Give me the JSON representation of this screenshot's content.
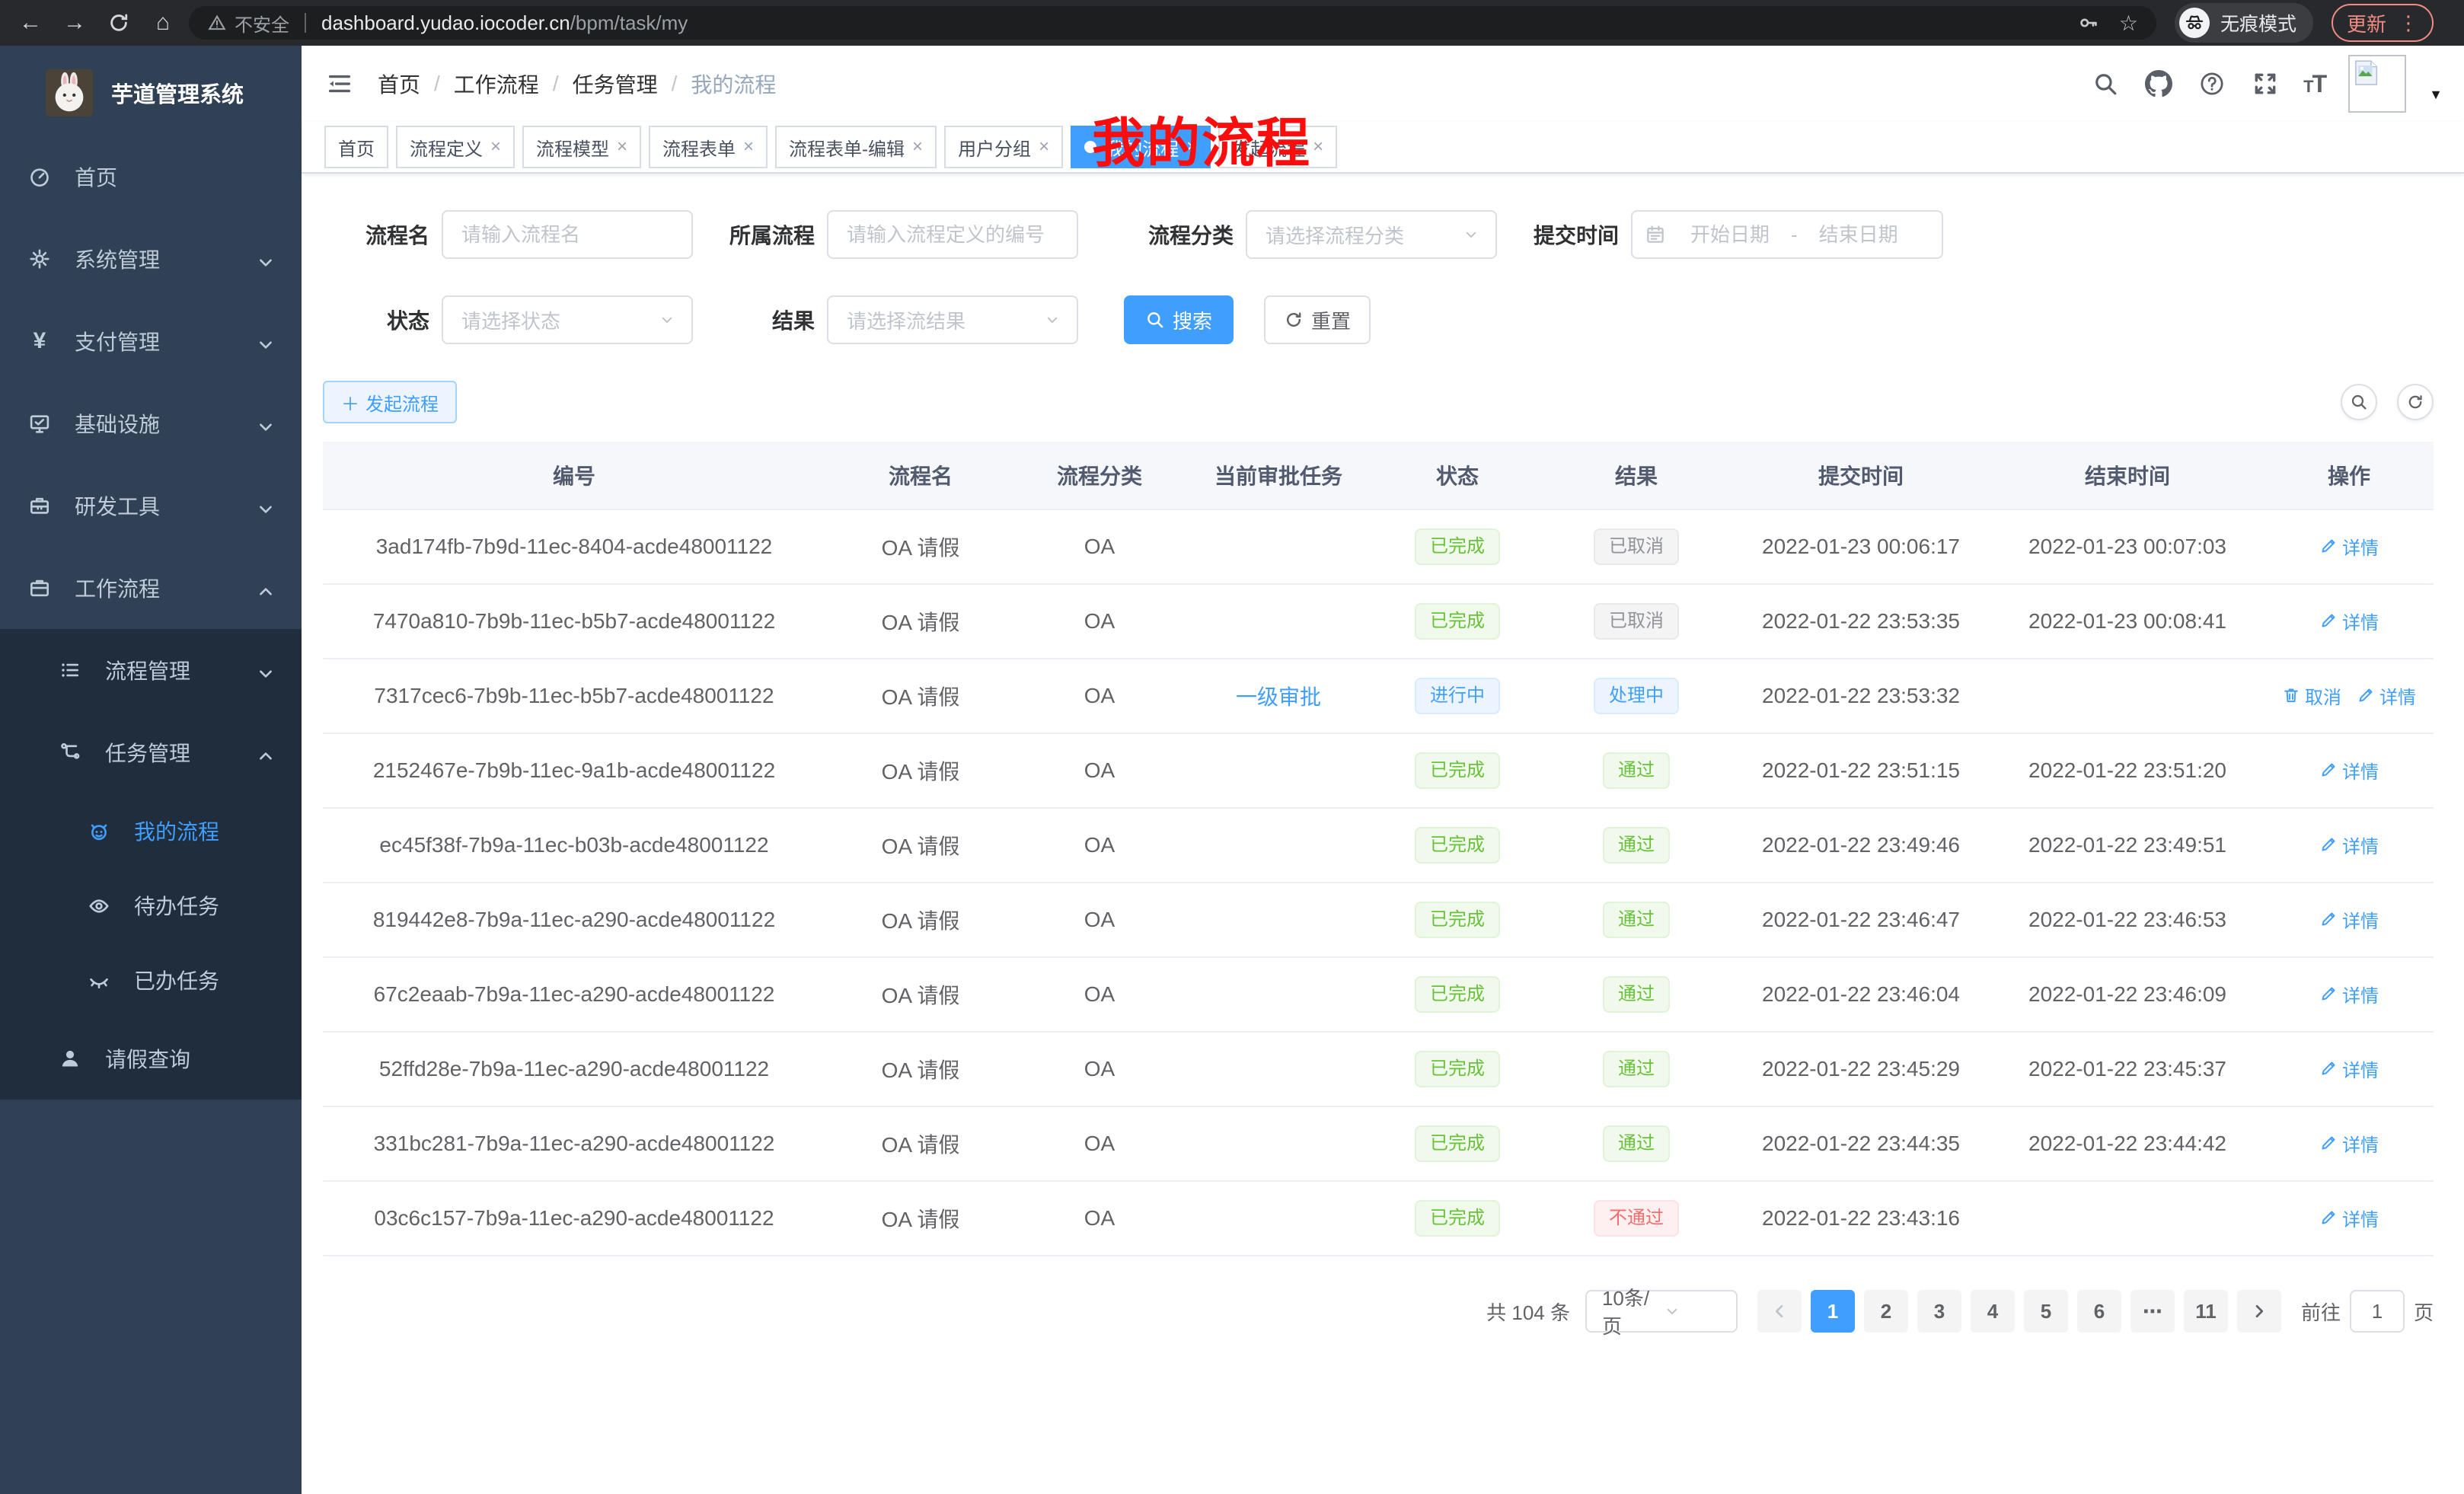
{
  "browser": {
    "not_secure": "不安全",
    "url_host": "dashboard.yudao.iocoder.cn",
    "url_path": "/bpm/task/my",
    "incognito_label": "无痕模式",
    "update_label": "更新"
  },
  "sidebar": {
    "title": "芋道管理系统",
    "menu": [
      {
        "name": "home",
        "label": "首页",
        "icon": "dashboard-icon",
        "level": 1,
        "sub": false
      },
      {
        "name": "system",
        "label": "系统管理",
        "icon": "gear-icon",
        "level": 1,
        "chevron": "down",
        "sub": false
      },
      {
        "name": "payment",
        "label": "支付管理",
        "icon": "yen-icon",
        "level": 1,
        "chevron": "down",
        "sub": false
      },
      {
        "name": "infrastructure",
        "label": "基础设施",
        "icon": "monitor-icon",
        "level": 1,
        "chevron": "down",
        "sub": false
      },
      {
        "name": "dev-tools",
        "label": "研发工具",
        "icon": "toolbox-icon",
        "level": 1,
        "chevron": "down",
        "sub": false
      },
      {
        "name": "workflow",
        "label": "工作流程",
        "icon": "briefcase-icon",
        "level": 1,
        "chevron": "up",
        "sub": false
      },
      {
        "name": "process-mgmt",
        "label": "流程管理",
        "icon": "list-icon",
        "level": 2,
        "chevron": "down",
        "sub": true
      },
      {
        "name": "task-mgmt",
        "label": "任务管理",
        "icon": "tree-icon",
        "level": 2,
        "chevron": "up",
        "sub": true
      },
      {
        "name": "my-process",
        "label": "我的流程",
        "icon": "robot-icon",
        "level": 3,
        "active": true,
        "sub": true
      },
      {
        "name": "todo-tasks",
        "label": "待办任务",
        "icon": "eye-icon",
        "level": 3,
        "sub": true
      },
      {
        "name": "done-tasks",
        "label": "已办任务",
        "icon": "eye-closed-icon",
        "level": 3,
        "sub": true
      },
      {
        "name": "leave-query",
        "label": "请假查询",
        "icon": "user-icon",
        "level": 2,
        "sub": true
      }
    ]
  },
  "header": {
    "breadcrumb": [
      "首页",
      "工作流程",
      "任务管理",
      "我的流程"
    ],
    "annotation": "我的流程"
  },
  "tabs": [
    {
      "name": "tab-home",
      "label": "首页",
      "closable": false,
      "active": false
    },
    {
      "name": "tab-process-definition",
      "label": "流程定义",
      "closable": true,
      "active": false
    },
    {
      "name": "tab-process-model",
      "label": "流程模型",
      "closable": true,
      "active": false
    },
    {
      "name": "tab-process-form",
      "label": "流程表单",
      "closable": true,
      "active": false
    },
    {
      "name": "tab-process-form-edit",
      "label": "流程表单-编辑",
      "closable": true,
      "active": false
    },
    {
      "name": "tab-user-group",
      "label": "用户分组",
      "closable": true,
      "active": false
    },
    {
      "name": "tab-my-process",
      "label": "我的流程",
      "closable": true,
      "active": true
    },
    {
      "name": "tab-start-process",
      "label": "发起流程",
      "closable": true,
      "active": false
    }
  ],
  "filters": {
    "name_label": "流程名",
    "name_placeholder": "请输入流程名",
    "definition_label": "所属流程",
    "definition_placeholder": "请输入流程定义的编号",
    "category_label": "流程分类",
    "category_placeholder": "请选择流程分类",
    "time_label": "提交时间",
    "start_placeholder": "开始日期",
    "range_separator": "-",
    "end_placeholder": "结束日期",
    "status_label": "状态",
    "status_placeholder": "请选择状态",
    "result_label": "结果",
    "result_placeholder": "请选择流结果",
    "search_label": "搜索",
    "reset_label": "重置"
  },
  "toolbar": {
    "create_label": "发起流程"
  },
  "table": {
    "columns": [
      "编号",
      "流程名",
      "流程分类",
      "当前审批任务",
      "状态",
      "结果",
      "提交时间",
      "结束时间",
      "操作"
    ],
    "rows": [
      {
        "id": "3ad174fb-7b9d-11ec-8404-acde48001122",
        "name": "OA 请假",
        "category": "OA",
        "task": "",
        "status": {
          "text": "已完成",
          "type": "success"
        },
        "result": {
          "text": "已取消",
          "type": "info"
        },
        "submit": "2022-01-23 00:06:17",
        "end": "2022-01-23 00:07:03",
        "ops": [
          {
            "name": "detail-button",
            "label": "详情",
            "icon": "edit-icon"
          }
        ]
      },
      {
        "id": "7470a810-7b9b-11ec-b5b7-acde48001122",
        "name": "OA 请假",
        "category": "OA",
        "task": "",
        "status": {
          "text": "已完成",
          "type": "success"
        },
        "result": {
          "text": "已取消",
          "type": "info"
        },
        "submit": "2022-01-22 23:53:35",
        "end": "2022-01-23 00:08:41",
        "ops": [
          {
            "name": "detail-button",
            "label": "详情",
            "icon": "edit-icon"
          }
        ]
      },
      {
        "id": "7317cec6-7b9b-11ec-b5b7-acde48001122",
        "name": "OA 请假",
        "category": "OA",
        "task": "一级审批",
        "status": {
          "text": "进行中",
          "type": "primary"
        },
        "result": {
          "text": "处理中",
          "type": "primary"
        },
        "submit": "2022-01-22 23:53:32",
        "end": "",
        "ops": [
          {
            "name": "cancel-button",
            "label": "取消",
            "icon": "trash-icon"
          },
          {
            "name": "detail-button",
            "label": "详情",
            "icon": "edit-icon"
          }
        ]
      },
      {
        "id": "2152467e-7b9b-11ec-9a1b-acde48001122",
        "name": "OA 请假",
        "category": "OA",
        "task": "",
        "status": {
          "text": "已完成",
          "type": "success"
        },
        "result": {
          "text": "通过",
          "type": "success"
        },
        "submit": "2022-01-22 23:51:15",
        "end": "2022-01-22 23:51:20",
        "ops": [
          {
            "name": "detail-button",
            "label": "详情",
            "icon": "edit-icon"
          }
        ]
      },
      {
        "id": "ec45f38f-7b9a-11ec-b03b-acde48001122",
        "name": "OA 请假",
        "category": "OA",
        "task": "",
        "status": {
          "text": "已完成",
          "type": "success"
        },
        "result": {
          "text": "通过",
          "type": "success"
        },
        "submit": "2022-01-22 23:49:46",
        "end": "2022-01-22 23:49:51",
        "ops": [
          {
            "name": "detail-button",
            "label": "详情",
            "icon": "edit-icon"
          }
        ]
      },
      {
        "id": "819442e8-7b9a-11ec-a290-acde48001122",
        "name": "OA 请假",
        "category": "OA",
        "task": "",
        "status": {
          "text": "已完成",
          "type": "success"
        },
        "result": {
          "text": "通过",
          "type": "success"
        },
        "submit": "2022-01-22 23:46:47",
        "end": "2022-01-22 23:46:53",
        "ops": [
          {
            "name": "detail-button",
            "label": "详情",
            "icon": "edit-icon"
          }
        ]
      },
      {
        "id": "67c2eaab-7b9a-11ec-a290-acde48001122",
        "name": "OA 请假",
        "category": "OA",
        "task": "",
        "status": {
          "text": "已完成",
          "type": "success"
        },
        "result": {
          "text": "通过",
          "type": "success"
        },
        "submit": "2022-01-22 23:46:04",
        "end": "2022-01-22 23:46:09",
        "ops": [
          {
            "name": "detail-button",
            "label": "详情",
            "icon": "edit-icon"
          }
        ]
      },
      {
        "id": "52ffd28e-7b9a-11ec-a290-acde48001122",
        "name": "OA 请假",
        "category": "OA",
        "task": "",
        "status": {
          "text": "已完成",
          "type": "success"
        },
        "result": {
          "text": "通过",
          "type": "success"
        },
        "submit": "2022-01-22 23:45:29",
        "end": "2022-01-22 23:45:37",
        "ops": [
          {
            "name": "detail-button",
            "label": "详情",
            "icon": "edit-icon"
          }
        ]
      },
      {
        "id": "331bc281-7b9a-11ec-a290-acde48001122",
        "name": "OA 请假",
        "category": "OA",
        "task": "",
        "status": {
          "text": "已完成",
          "type": "success"
        },
        "result": {
          "text": "通过",
          "type": "success"
        },
        "submit": "2022-01-22 23:44:35",
        "end": "2022-01-22 23:44:42",
        "ops": [
          {
            "name": "detail-button",
            "label": "详情",
            "icon": "edit-icon"
          }
        ]
      },
      {
        "id": "03c6c157-7b9a-11ec-a290-acde48001122",
        "name": "OA 请假",
        "category": "OA",
        "task": "",
        "status": {
          "text": "已完成",
          "type": "success"
        },
        "result": {
          "text": "不通过",
          "type": "danger"
        },
        "submit": "2022-01-22 23:43:16",
        "end": "",
        "ops": [
          {
            "name": "detail-button",
            "label": "详情",
            "icon": "edit-icon"
          }
        ]
      }
    ]
  },
  "pagination": {
    "total": "共 104 条",
    "page_size": "10条/页",
    "pages": [
      {
        "label": "1",
        "active": true
      },
      {
        "label": "2"
      },
      {
        "label": "3"
      },
      {
        "label": "4"
      },
      {
        "label": "5"
      },
      {
        "label": "6"
      },
      {
        "label": "⋯",
        "ellipsis": true
      },
      {
        "label": "11"
      }
    ],
    "jump_prefix": "前往",
    "jump_value": "1",
    "jump_suffix": "页"
  },
  "colors": {
    "primary": "#409eff",
    "success": "#67c23a",
    "info": "#909399",
    "danger": "#f56c6c",
    "sidebar_bg": "#304156",
    "submenu_bg": "#1f2d3d",
    "annotation_red": "#fb0d0d"
  }
}
